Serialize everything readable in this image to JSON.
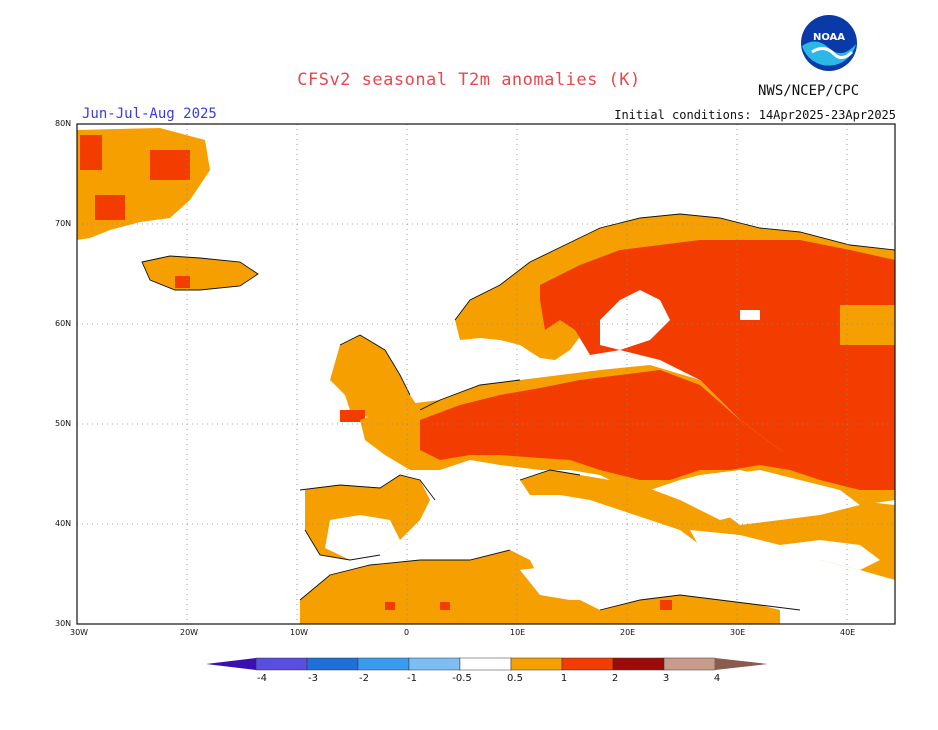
{
  "title": "CFSv2 seasonal T2m anomalies (K)",
  "period": "Jun-Jul-Aug 2025",
  "initial_conditions": "Initial conditions: 14Apr2025-23Apr2025",
  "agency": "NWS/NCEP/CPC",
  "logo_text": "NOAA",
  "lat_labels": [
    "80N",
    "70N",
    "60N",
    "50N",
    "40N",
    "30N"
  ],
  "lon_labels": [
    "30W",
    "20W",
    "10W",
    "0",
    "10E",
    "20E",
    "30E",
    "40E"
  ],
  "colorbar": {
    "labels": [
      "-4",
      "-3",
      "-2",
      "-1",
      "-0.5",
      "0.5",
      "1",
      "2",
      "3",
      "4"
    ],
    "colors": [
      "#3a10b0",
      "#5a4ee0",
      "#1e6fd8",
      "#3a9cf0",
      "#7ebcf4",
      "#ffffff",
      "#f5a000",
      "#f23c00",
      "#9c0a0a",
      "#c99b8c",
      "#8b5b50"
    ]
  }
}
